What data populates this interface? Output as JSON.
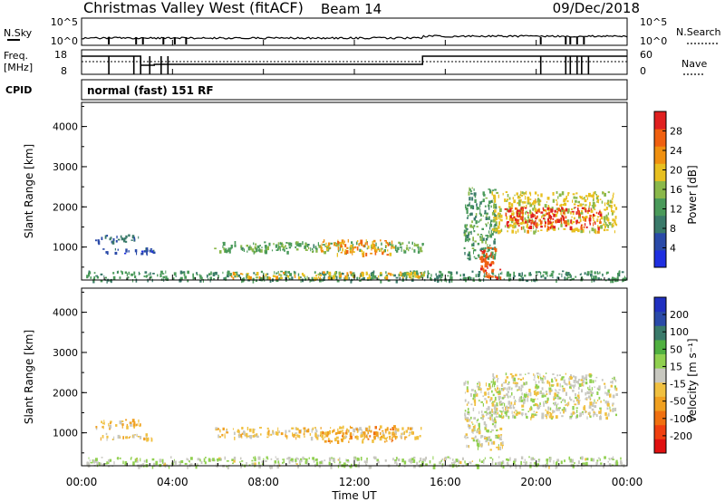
{
  "header": {
    "station": "Christmas Valley West (fitACF)",
    "beam": "Beam 14",
    "date": "09/Dec/2018"
  },
  "noise_panel": {
    "left_label": "N.Sky",
    "right_label": "N.Search",
    "left_ticks": [
      "10^5",
      "10^0"
    ],
    "right_ticks": [
      "10^5",
      "10^0"
    ]
  },
  "freq_panel": {
    "left_label_line1": "Freq.",
    "left_label_line2": "[MHz]",
    "right_label": "Nave",
    "left_ticks": [
      "18",
      "8"
    ],
    "right_ticks": [
      "60",
      "0"
    ]
  },
  "cpid": {
    "label": "CPID",
    "value": "normal (fast) 151 RF"
  },
  "xaxis": {
    "label": "Time UT",
    "ticks": [
      "00:00",
      "04:00",
      "08:00",
      "12:00",
      "16:00",
      "20:00",
      "00:00"
    ]
  },
  "colors": {
    "power": [
      "#1f2fe0",
      "#2a4aa8",
      "#3a7a6a",
      "#4a9a5a",
      "#8ab84a",
      "#e8c020",
      "#f09010",
      "#f06010",
      "#e02020"
    ],
    "velocity": [
      "#e01010",
      "#f04010",
      "#f07010",
      "#f0a020",
      "#f0c040",
      "#c8c8c0",
      "#90d050",
      "#50b040",
      "#3a7a6a",
      "#2a4aa8",
      "#2030c0"
    ]
  },
  "chart_data": [
    {
      "type": "heatmap",
      "title": "",
      "xlabel": "",
      "ylabel": "Slant Range [km]",
      "xlim": [
        0,
        24
      ],
      "ylim": [
        180,
        4600
      ],
      "yticks": [
        "1000",
        "2000",
        "3000",
        "4000"
      ],
      "colorbar_label": "Power [dB]",
      "colorbar_ticks": [
        "4",
        "8",
        "12",
        "16",
        "20",
        "24",
        "28"
      ],
      "clim": [
        0,
        31
      ],
      "regions": [
        {
          "t0": 0.2,
          "t1": 24.0,
          "r0": 180,
          "r1": 420,
          "value": 11
        },
        {
          "t0": 6.5,
          "t1": 15.2,
          "r0": 250,
          "r1": 400,
          "value": 19
        },
        {
          "t0": 0.5,
          "t1": 2.6,
          "r0": 1150,
          "r1": 1320,
          "value": 7
        },
        {
          "t0": 0.8,
          "t1": 3.2,
          "r0": 850,
          "r1": 1000,
          "value": 6
        },
        {
          "t0": 5.8,
          "t1": 15.0,
          "r0": 900,
          "r1": 1150,
          "value": 13
        },
        {
          "t0": 10.5,
          "t1": 13.8,
          "r0": 830,
          "r1": 1200,
          "value": 22
        },
        {
          "t0": 16.8,
          "t1": 18.2,
          "r0": 700,
          "r1": 2500,
          "value": 12
        },
        {
          "t0": 17.5,
          "t1": 18.4,
          "r0": 250,
          "r1": 1000,
          "value": 27
        },
        {
          "t0": 18.0,
          "t1": 23.5,
          "r0": 1400,
          "r1": 2400,
          "value": 18
        },
        {
          "t0": 18.6,
          "t1": 22.8,
          "r0": 1500,
          "r1": 2000,
          "value": 28
        }
      ]
    },
    {
      "type": "heatmap",
      "title": "",
      "xlabel": "Time UT",
      "ylabel": "Slant Range [km]",
      "xlim": [
        0,
        24
      ],
      "ylim": [
        180,
        4600
      ],
      "yticks": [
        "1000",
        "2000",
        "3000",
        "4000"
      ],
      "colorbar_label": "Velocity [m s⁻¹]",
      "colorbar_ticks": [
        "-200",
        "-100",
        "-50",
        "-15",
        "15",
        "50",
        "100",
        "200"
      ],
      "clim": [
        -250,
        250
      ],
      "regions": [
        {
          "t0": 0.2,
          "t1": 24.0,
          "r0": 180,
          "r1": 420,
          "value": 20
        },
        {
          "t0": 0.5,
          "t1": 2.6,
          "r0": 1150,
          "r1": 1350,
          "value": -60
        },
        {
          "t0": 0.8,
          "t1": 3.2,
          "r0": 850,
          "r1": 1000,
          "value": -30
        },
        {
          "t0": 5.8,
          "t1": 15.0,
          "r0": 900,
          "r1": 1150,
          "value": -40
        },
        {
          "t0": 10.5,
          "t1": 13.8,
          "r0": 800,
          "r1": 1200,
          "value": -80
        },
        {
          "t0": 16.8,
          "t1": 18.5,
          "r0": 600,
          "r1": 2300,
          "value": 0
        },
        {
          "t0": 18.0,
          "t1": 23.5,
          "r0": 1400,
          "r1": 2500,
          "value": 0
        }
      ]
    }
  ]
}
